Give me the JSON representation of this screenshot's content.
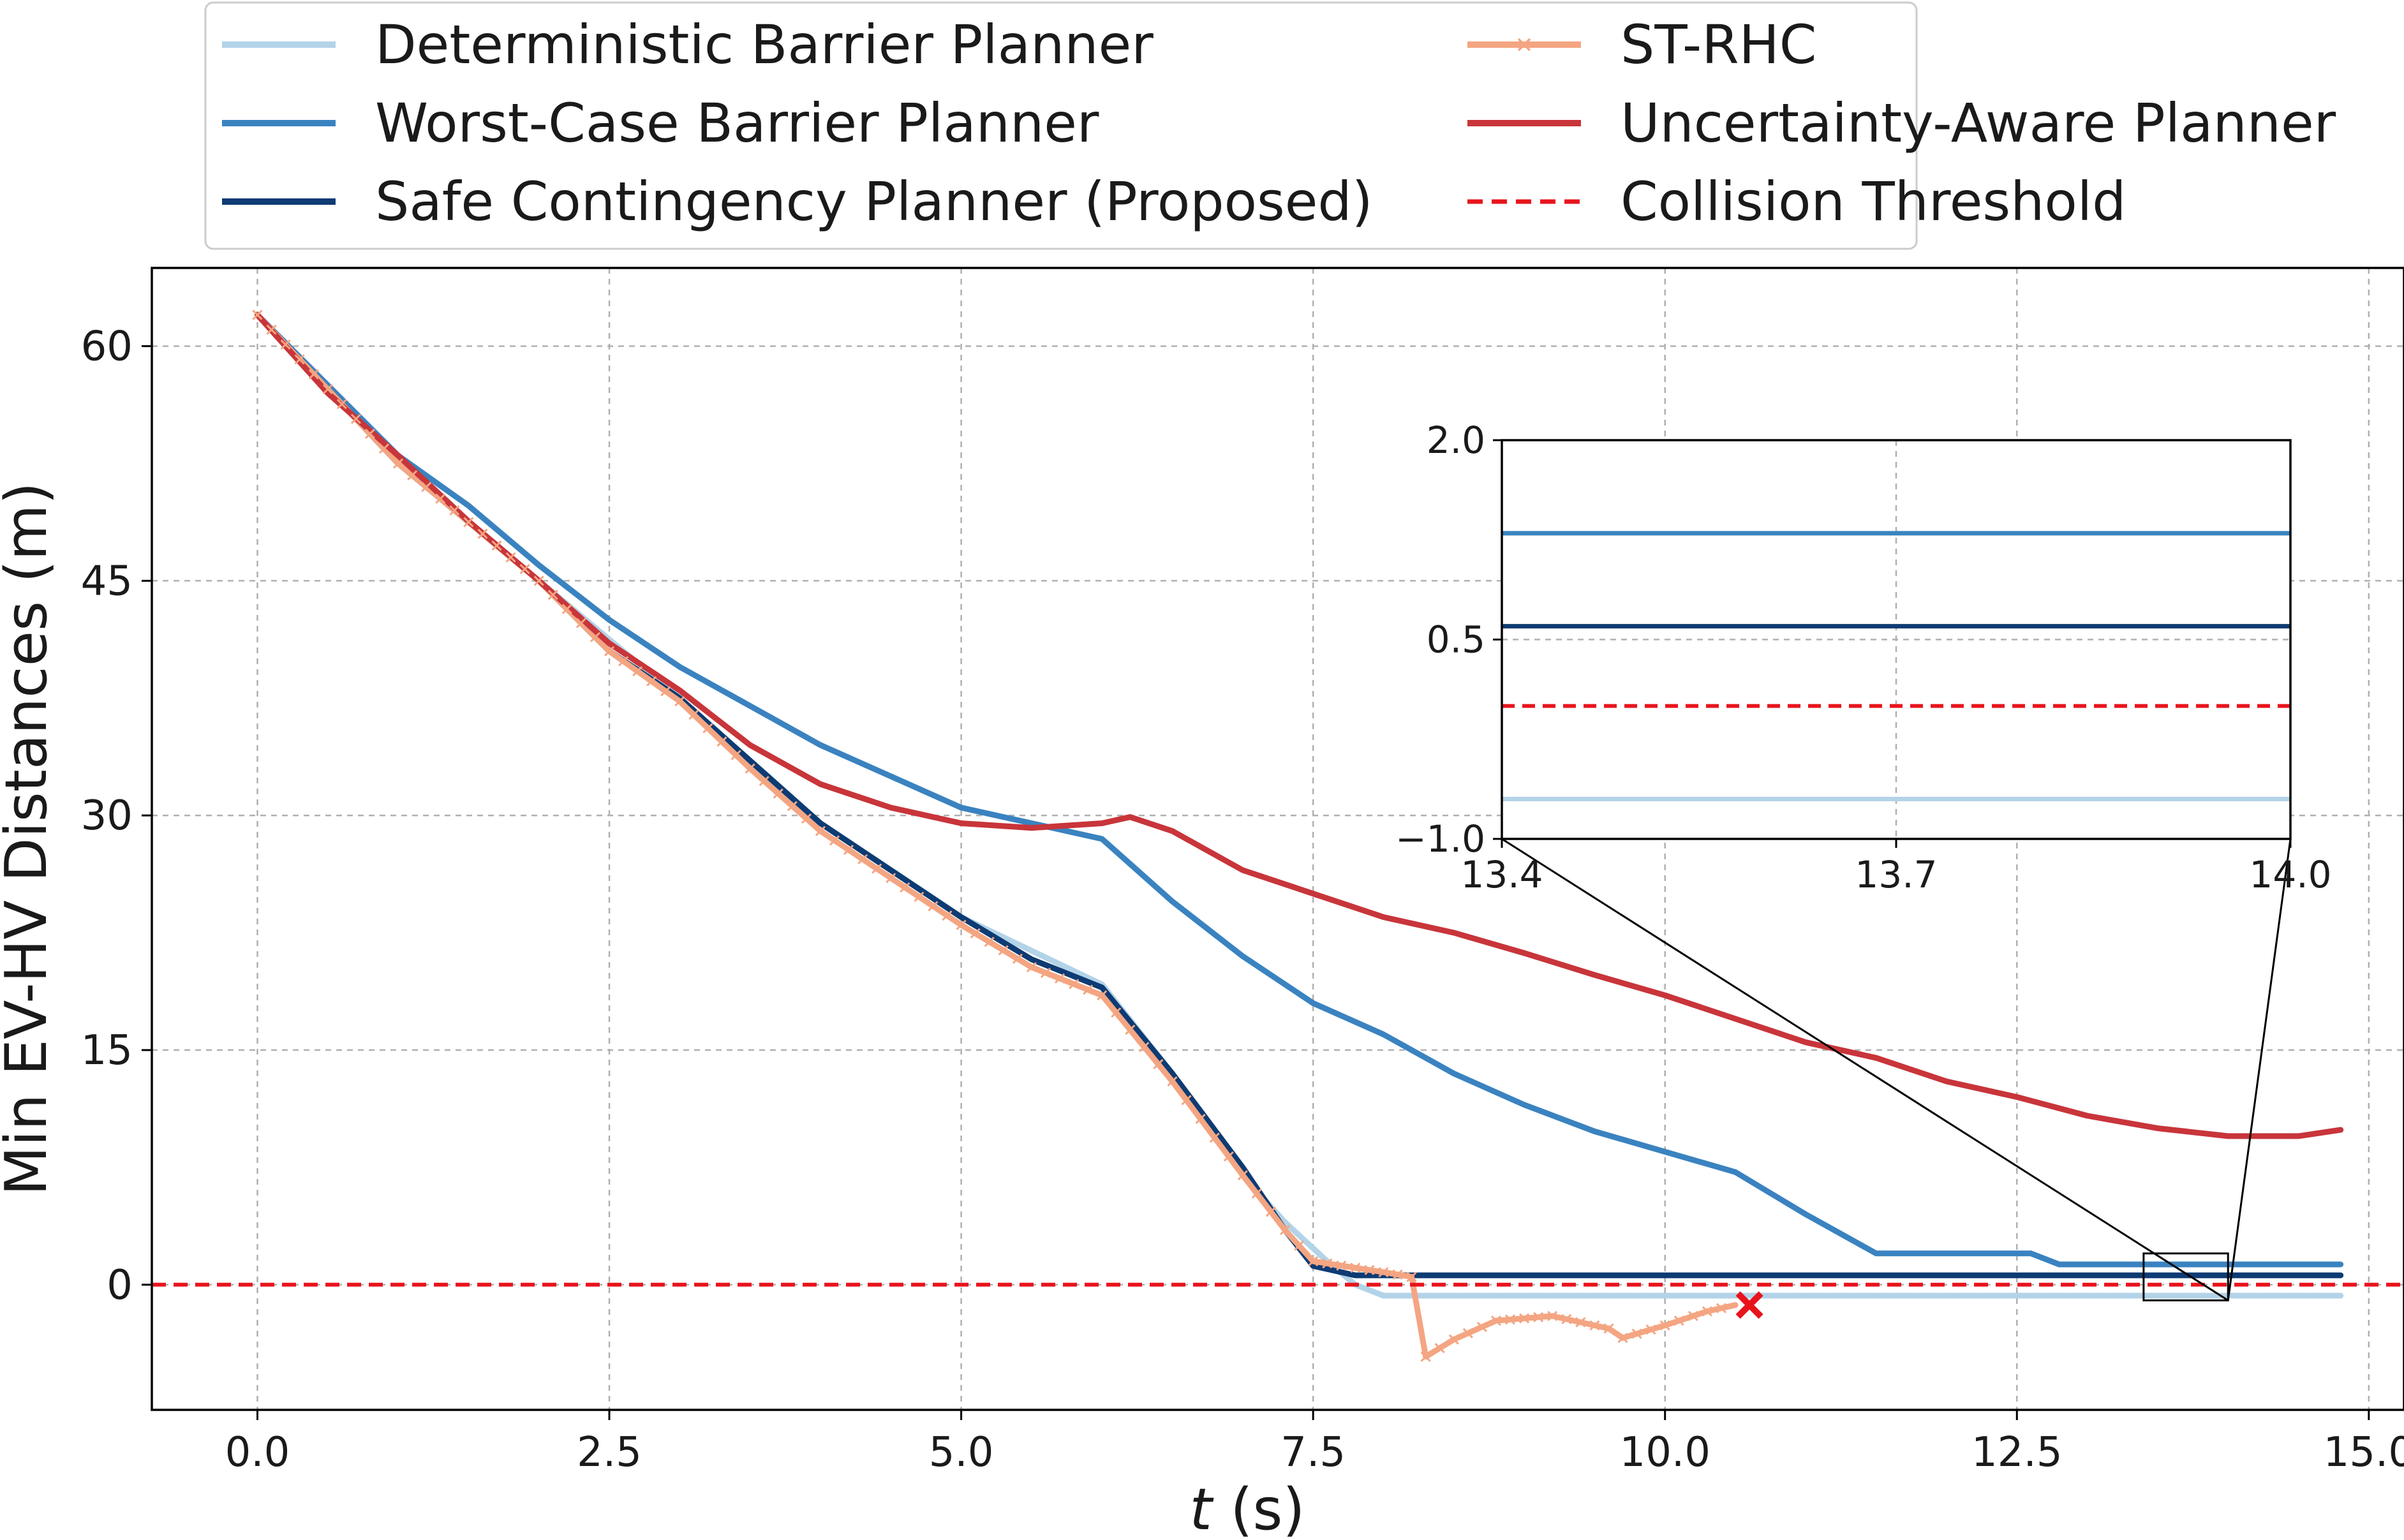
{
  "chart_data": {
    "type": "line",
    "xlabel_var": "t",
    "xlabel_unit": "(s)",
    "ylabel": "Min EV-HV Distances (m)",
    "xlim": [
      -0.75,
      15.25
    ],
    "ylim": [
      -8,
      65
    ],
    "xticks": [
      "0.0",
      "2.5",
      "5.0",
      "7.5",
      "10.0",
      "12.5",
      "15.0"
    ],
    "xtick_values": [
      0,
      2.5,
      5,
      7.5,
      10,
      12.5,
      15
    ],
    "yticks": [
      "0",
      "15",
      "30",
      "45",
      "60"
    ],
    "ytick_values": [
      0,
      15,
      30,
      45,
      60
    ],
    "grid": true,
    "legend_position": "top (above plot), two columns",
    "series": [
      {
        "name": "Deterministic Barrier Planner",
        "color": "#b3d3e8",
        "points": [
          [
            0,
            62
          ],
          [
            1,
            52.5
          ],
          [
            2,
            45
          ],
          [
            3,
            37.5
          ],
          [
            4,
            29.5
          ],
          [
            5,
            23.5
          ],
          [
            6,
            19.2
          ],
          [
            6.5,
            13.5
          ],
          [
            7,
            7
          ],
          [
            7.3,
            4
          ],
          [
            7.6,
            1.5
          ],
          [
            7.8,
            0
          ],
          [
            8,
            -0.7
          ],
          [
            14.8,
            -0.7
          ]
        ]
      },
      {
        "name": "Worst-Case Barrier Planner",
        "color": "#3a83c0",
        "points": [
          [
            0,
            62
          ],
          [
            0.5,
            57.5
          ],
          [
            1,
            53
          ],
          [
            1.5,
            49.8
          ],
          [
            2,
            46
          ],
          [
            2.5,
            42.5
          ],
          [
            3,
            39.5
          ],
          [
            3.5,
            37
          ],
          [
            4,
            34.5
          ],
          [
            4.5,
            32.5
          ],
          [
            5,
            30.5
          ],
          [
            5.5,
            29.5
          ],
          [
            6,
            28.5
          ],
          [
            6.5,
            24.5
          ],
          [
            7,
            21
          ],
          [
            7.5,
            18
          ],
          [
            8,
            16
          ],
          [
            8.5,
            13.5
          ],
          [
            9,
            11.5
          ],
          [
            9.5,
            9.8
          ],
          [
            10,
            8.5
          ],
          [
            10.5,
            7.2
          ],
          [
            11,
            4.5
          ],
          [
            11.5,
            2
          ],
          [
            12,
            2
          ],
          [
            12.6,
            2
          ],
          [
            12.8,
            1.3
          ],
          [
            14.8,
            1.3
          ]
        ]
      },
      {
        "name": "Safe Contingency Planner (Proposed)",
        "color": "#0d3b73",
        "points": [
          [
            0,
            62
          ],
          [
            1,
            52.5
          ],
          [
            2,
            45
          ],
          [
            2.5,
            40.5
          ],
          [
            3,
            37.5
          ],
          [
            3.5,
            33.5
          ],
          [
            4,
            29.5
          ],
          [
            4.5,
            26.5
          ],
          [
            5,
            23.5
          ],
          [
            5.5,
            20.8
          ],
          [
            6,
            19
          ],
          [
            6.5,
            13.5
          ],
          [
            7,
            7.5
          ],
          [
            7.3,
            3.5
          ],
          [
            7.5,
            1.2
          ],
          [
            7.8,
            0.6
          ],
          [
            14.8,
            0.6
          ]
        ]
      },
      {
        "name": "ST-RHC",
        "color": "#f4a582",
        "marker": "x",
        "points": [
          [
            0,
            62
          ],
          [
            1,
            52.5
          ],
          [
            2,
            45
          ],
          [
            2.5,
            40.5
          ],
          [
            3,
            37.3
          ],
          [
            3.5,
            33
          ],
          [
            4,
            29
          ],
          [
            4.5,
            26
          ],
          [
            5,
            23
          ],
          [
            5.5,
            20.3
          ],
          [
            6,
            18.5
          ],
          [
            6.5,
            13
          ],
          [
            7,
            7
          ],
          [
            7.3,
            3.5
          ],
          [
            7.5,
            1.5
          ],
          [
            8,
            0.8
          ],
          [
            8.2,
            0.5
          ],
          [
            8.3,
            -4.6
          ],
          [
            8.5,
            -3.5
          ],
          [
            8.8,
            -2.3
          ],
          [
            9.2,
            -2
          ],
          [
            9.6,
            -2.8
          ],
          [
            9.7,
            -3.4
          ],
          [
            10,
            -2.6
          ],
          [
            10.3,
            -1.7
          ],
          [
            10.5,
            -1.3
          ]
        ]
      },
      {
        "name": "Uncertainty-Aware Planner",
        "color": "#c8353a",
        "points": [
          [
            0,
            62
          ],
          [
            0.5,
            57
          ],
          [
            1,
            53
          ],
          [
            1.5,
            48.8
          ],
          [
            2,
            45
          ],
          [
            2.5,
            41
          ],
          [
            3,
            38
          ],
          [
            3.5,
            34.5
          ],
          [
            4,
            32
          ],
          [
            4.5,
            30.5
          ],
          [
            5,
            29.5
          ],
          [
            5.5,
            29.2
          ],
          [
            6,
            29.5
          ],
          [
            6.2,
            29.9
          ],
          [
            6.5,
            29
          ],
          [
            7,
            26.5
          ],
          [
            7.5,
            25
          ],
          [
            8,
            23.5
          ],
          [
            8.5,
            22.5
          ],
          [
            9,
            21.2
          ],
          [
            9.5,
            19.8
          ],
          [
            10,
            18.5
          ],
          [
            10.5,
            17
          ],
          [
            11,
            15.5
          ],
          [
            11.5,
            14.5
          ],
          [
            12,
            13
          ],
          [
            12.5,
            12
          ],
          [
            13,
            10.8
          ],
          [
            13.5,
            10
          ],
          [
            14,
            9.5
          ],
          [
            14.5,
            9.5
          ],
          [
            14.8,
            9.9
          ]
        ]
      },
      {
        "name": "Collision Threshold",
        "color": "#e8141c",
        "style": "dashed",
        "points": [
          [
            -0.75,
            0
          ],
          [
            15.25,
            0
          ]
        ]
      }
    ],
    "annotations": [
      {
        "type": "collision-marker",
        "symbol": "x",
        "x": 10.6,
        "y": -1.3,
        "color": "#e8141c"
      }
    ],
    "inset": {
      "xlim": [
        13.4,
        14.0
      ],
      "ylim": [
        -1.0,
        2.0
      ],
      "xticks": [
        "13.4",
        "13.7",
        "14.0"
      ],
      "xtick_values": [
        13.4,
        13.7,
        14.0
      ],
      "yticks": [
        "−1.0",
        "0.5",
        "2.0"
      ],
      "ytick_values": [
        -1.0,
        0.5,
        2.0
      ],
      "grid": true,
      "zoom_region": {
        "x": [
          13.4,
          14.0
        ],
        "y": [
          -1.0,
          2.0
        ]
      }
    }
  }
}
